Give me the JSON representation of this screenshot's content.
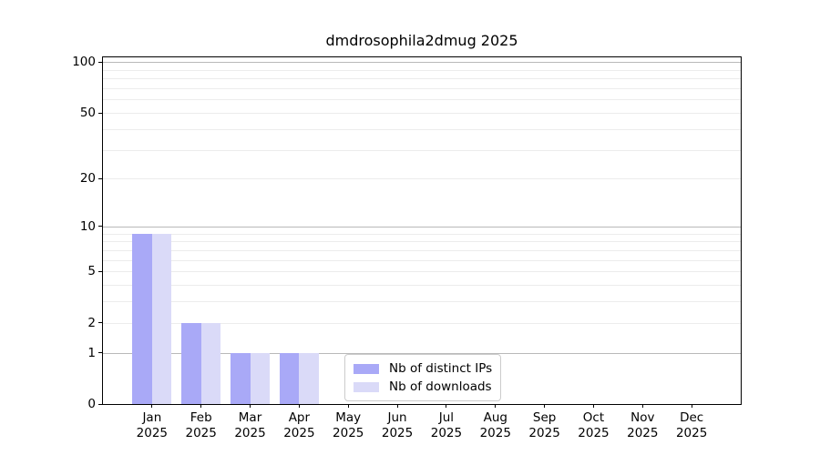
{
  "chart_data": {
    "type": "bar",
    "title": "dmdrosophila2dmug 2025",
    "categories": [
      "Jan 2025",
      "Feb 2025",
      "Mar 2025",
      "Apr 2025",
      "May 2025",
      "Jun 2025",
      "Jul 2025",
      "Aug 2025",
      "Sep 2025",
      "Oct 2025",
      "Nov 2025",
      "Dec 2025"
    ],
    "series": [
      {
        "name": "Nb of distinct IPs",
        "color": "#a9a9f7",
        "values": [
          9,
          2,
          1,
          1,
          0,
          0,
          0,
          0,
          0,
          0,
          0,
          0
        ]
      },
      {
        "name": "Nb of downloads",
        "color": "#dadaf8",
        "values": [
          9,
          2,
          1,
          1,
          0,
          0,
          0,
          0,
          0,
          0,
          0,
          0
        ]
      }
    ],
    "xlabel": "",
    "ylabel": "",
    "y_ticks": [
      0,
      1,
      2,
      5,
      10,
      20,
      50,
      100
    ],
    "ylim": [
      0,
      107
    ],
    "yscale": "log10(1+y)",
    "grid": "horizontal, minor and major",
    "legend_position": "inside bottom-center",
    "colors": {
      "spine": "#000000",
      "grid_decade": "#b9b9b9",
      "grid_minor": "#ececec",
      "text": "#000000",
      "background": "#ffffff"
    }
  }
}
